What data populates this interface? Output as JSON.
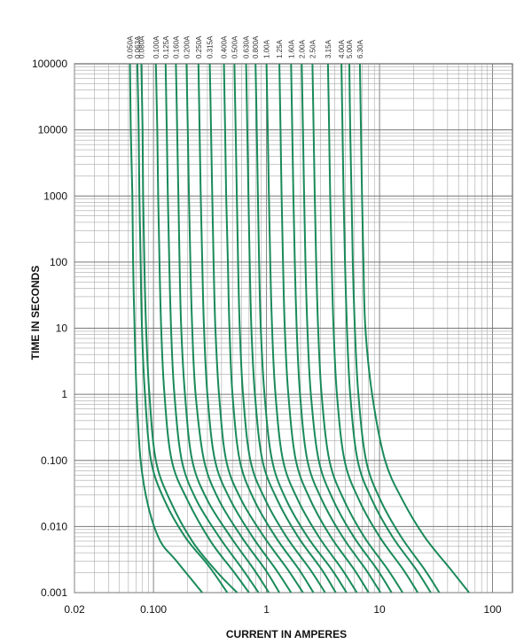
{
  "chart_data": {
    "type": "line",
    "title": "",
    "xlabel": "CURRENT IN AMPERES",
    "ylabel": "TIME IN SECONDS",
    "x_scale": "log",
    "y_scale": "log",
    "xlim": [
      0.02,
      150
    ],
    "ylim": [
      0.001,
      100000
    ],
    "grid": true,
    "line_color": "#1a8a5a",
    "x_ticks": [
      {
        "value": 0.02,
        "label": "0.02"
      },
      {
        "value": 0.1,
        "label": "0.100"
      },
      {
        "value": 1,
        "label": "1"
      },
      {
        "value": 10,
        "label": "10"
      },
      {
        "value": 100,
        "label": "100"
      }
    ],
    "y_ticks": [
      {
        "value": 100000,
        "label": "100000"
      },
      {
        "value": 10000,
        "label": "10000"
      },
      {
        "value": 1000,
        "label": "1000"
      },
      {
        "value": 100,
        "label": "100"
      },
      {
        "value": 10,
        "label": "10"
      },
      {
        "value": 1,
        "label": "1"
      },
      {
        "value": 0.1,
        "label": "0.100"
      },
      {
        "value": 0.01,
        "label": "0.010"
      },
      {
        "value": 0.001,
        "label": "0.001"
      }
    ],
    "series": [
      {
        "name": "0.050A",
        "points": [
          [
            0.062,
            100000
          ],
          [
            0.063,
            10000
          ],
          [
            0.065,
            1000
          ],
          [
            0.066,
            100
          ],
          [
            0.068,
            10
          ],
          [
            0.071,
            1
          ],
          [
            0.077,
            0.1
          ],
          [
            0.09,
            0.02
          ],
          [
            0.115,
            0.006
          ],
          [
            0.16,
            0.003
          ],
          [
            0.27,
            0.001
          ]
        ]
      },
      {
        "name": "0.063A",
        "points": [
          [
            0.072,
            100000
          ],
          [
            0.074,
            10000
          ],
          [
            0.075,
            1000
          ],
          [
            0.077,
            100
          ],
          [
            0.079,
            10
          ],
          [
            0.084,
            1
          ],
          [
            0.095,
            0.1
          ],
          [
            0.125,
            0.025
          ],
          [
            0.19,
            0.007
          ],
          [
            0.31,
            0.0025
          ],
          [
            0.45,
            0.001
          ]
        ]
      },
      {
        "name": "0.080A",
        "points": [
          [
            0.078,
            100000
          ],
          [
            0.08,
            10000
          ],
          [
            0.081,
            1000
          ],
          [
            0.083,
            100
          ],
          [
            0.086,
            10
          ],
          [
            0.092,
            1
          ],
          [
            0.105,
            0.1
          ],
          [
            0.14,
            0.025
          ],
          [
            0.22,
            0.006
          ],
          [
            0.37,
            0.002
          ],
          [
            0.55,
            0.001
          ]
        ]
      },
      {
        "name": "0.100A",
        "points": [
          [
            0.105,
            100000
          ],
          [
            0.108,
            10000
          ],
          [
            0.11,
            1000
          ],
          [
            0.113,
            100
          ],
          [
            0.117,
            10
          ],
          [
            0.125,
            1
          ],
          [
            0.145,
            0.1
          ],
          [
            0.2,
            0.025
          ],
          [
            0.32,
            0.006
          ],
          [
            0.52,
            0.002
          ],
          [
            0.7,
            0.001
          ]
        ]
      },
      {
        "name": "0.125A",
        "points": [
          [
            0.128,
            100000
          ],
          [
            0.131,
            10000
          ],
          [
            0.134,
            1000
          ],
          [
            0.138,
            100
          ],
          [
            0.143,
            10
          ],
          [
            0.153,
            1
          ],
          [
            0.178,
            0.1
          ],
          [
            0.24,
            0.025
          ],
          [
            0.38,
            0.007
          ],
          [
            0.62,
            0.0022
          ],
          [
            0.85,
            0.001
          ]
        ]
      },
      {
        "name": "0.160A",
        "points": [
          [
            0.158,
            100000
          ],
          [
            0.162,
            10000
          ],
          [
            0.166,
            1000
          ],
          [
            0.17,
            100
          ],
          [
            0.176,
            10
          ],
          [
            0.19,
            1
          ],
          [
            0.22,
            0.1
          ],
          [
            0.3,
            0.025
          ],
          [
            0.48,
            0.007
          ],
          [
            0.78,
            0.0022
          ],
          [
            1.05,
            0.001
          ]
        ]
      },
      {
        "name": "0.200A",
        "points": [
          [
            0.196,
            100000
          ],
          [
            0.201,
            10000
          ],
          [
            0.206,
            1000
          ],
          [
            0.212,
            100
          ],
          [
            0.22,
            10
          ],
          [
            0.236,
            1
          ],
          [
            0.28,
            0.1
          ],
          [
            0.38,
            0.025
          ],
          [
            0.6,
            0.007
          ],
          [
            0.98,
            0.0022
          ],
          [
            1.3,
            0.001
          ]
        ]
      },
      {
        "name": "0.250A",
        "points": [
          [
            0.25,
            100000
          ],
          [
            0.256,
            10000
          ],
          [
            0.262,
            1000
          ],
          [
            0.27,
            100
          ],
          [
            0.28,
            10
          ],
          [
            0.3,
            1
          ],
          [
            0.35,
            0.1
          ],
          [
            0.48,
            0.025
          ],
          [
            0.75,
            0.007
          ],
          [
            1.22,
            0.0022
          ],
          [
            1.65,
            0.001
          ]
        ]
      },
      {
        "name": "0.315A",
        "points": [
          [
            0.315,
            100000
          ],
          [
            0.323,
            10000
          ],
          [
            0.331,
            1000
          ],
          [
            0.34,
            100
          ],
          [
            0.353,
            10
          ],
          [
            0.38,
            1
          ],
          [
            0.44,
            0.1
          ],
          [
            0.6,
            0.025
          ],
          [
            0.95,
            0.007
          ],
          [
            1.55,
            0.0022
          ],
          [
            2.1,
            0.001
          ]
        ]
      },
      {
        "name": "0.400A",
        "points": [
          [
            0.42,
            100000
          ],
          [
            0.43,
            10000
          ],
          [
            0.44,
            1000
          ],
          [
            0.455,
            100
          ],
          [
            0.47,
            10
          ],
          [
            0.5,
            1
          ],
          [
            0.58,
            0.1
          ],
          [
            0.78,
            0.025
          ],
          [
            1.2,
            0.007
          ],
          [
            1.95,
            0.0022
          ],
          [
            2.6,
            0.001
          ]
        ]
      },
      {
        "name": "0.500A",
        "points": [
          [
            0.52,
            100000
          ],
          [
            0.533,
            10000
          ],
          [
            0.546,
            1000
          ],
          [
            0.56,
            100
          ],
          [
            0.58,
            10
          ],
          [
            0.62,
            1
          ],
          [
            0.72,
            0.1
          ],
          [
            0.98,
            0.025
          ],
          [
            1.5,
            0.007
          ],
          [
            2.45,
            0.0022
          ],
          [
            3.3,
            0.001
          ]
        ]
      },
      {
        "name": "0.630A",
        "points": [
          [
            0.66,
            100000
          ],
          [
            0.676,
            10000
          ],
          [
            0.692,
            1000
          ],
          [
            0.71,
            100
          ],
          [
            0.735,
            10
          ],
          [
            0.79,
            1
          ],
          [
            0.92,
            0.1
          ],
          [
            1.25,
            0.025
          ],
          [
            1.9,
            0.007
          ],
          [
            3.1,
            0.0022
          ],
          [
            4.1,
            0.001
          ]
        ]
      },
      {
        "name": "0.800A",
        "points": [
          [
            0.8,
            100000
          ],
          [
            0.82,
            10000
          ],
          [
            0.84,
            1000
          ],
          [
            0.86,
            100
          ],
          [
            0.89,
            10
          ],
          [
            0.96,
            1
          ],
          [
            1.12,
            0.1
          ],
          [
            1.5,
            0.025
          ],
          [
            2.3,
            0.007
          ],
          [
            3.8,
            0.0022
          ],
          [
            5.1,
            0.001
          ]
        ]
      },
      {
        "name": "1.00A",
        "points": [
          [
            1.0,
            100000
          ],
          [
            1.025,
            10000
          ],
          [
            1.05,
            1000
          ],
          [
            1.08,
            100
          ],
          [
            1.12,
            10
          ],
          [
            1.2,
            1
          ],
          [
            1.4,
            0.1
          ],
          [
            1.9,
            0.025
          ],
          [
            2.9,
            0.007
          ],
          [
            4.7,
            0.0022
          ],
          [
            6.3,
            0.001
          ]
        ]
      },
      {
        "name": "1.25A",
        "points": [
          [
            1.3,
            100000
          ],
          [
            1.33,
            10000
          ],
          [
            1.36,
            1000
          ],
          [
            1.4,
            100
          ],
          [
            1.45,
            10
          ],
          [
            1.56,
            1
          ],
          [
            1.82,
            0.1
          ],
          [
            2.45,
            0.025
          ],
          [
            3.7,
            0.007
          ],
          [
            6.0,
            0.0022
          ],
          [
            8.0,
            0.001
          ]
        ]
      },
      {
        "name": "1.60A",
        "points": [
          [
            1.65,
            100000
          ],
          [
            1.69,
            10000
          ],
          [
            1.73,
            1000
          ],
          [
            1.78,
            100
          ],
          [
            1.85,
            10
          ],
          [
            1.98,
            1
          ],
          [
            2.3,
            0.1
          ],
          [
            3.1,
            0.025
          ],
          [
            4.7,
            0.007
          ],
          [
            7.6,
            0.0022
          ],
          [
            10.2,
            0.001
          ]
        ]
      },
      {
        "name": "2.00A",
        "points": [
          [
            2.05,
            100000
          ],
          [
            2.1,
            10000
          ],
          [
            2.15,
            1000
          ],
          [
            2.21,
            100
          ],
          [
            2.3,
            10
          ],
          [
            2.47,
            1
          ],
          [
            2.9,
            0.1
          ],
          [
            3.9,
            0.025
          ],
          [
            5.9,
            0.007
          ],
          [
            9.6,
            0.0022
          ],
          [
            12.8,
            0.001
          ]
        ]
      },
      {
        "name": "2.50A",
        "points": [
          [
            2.55,
            100000
          ],
          [
            2.61,
            10000
          ],
          [
            2.67,
            1000
          ],
          [
            2.75,
            100
          ],
          [
            2.86,
            10
          ],
          [
            3.07,
            1
          ],
          [
            3.6,
            0.1
          ],
          [
            4.85,
            0.025
          ],
          [
            7.3,
            0.007
          ],
          [
            11.9,
            0.0022
          ],
          [
            16,
            0.001
          ]
        ]
      },
      {
        "name": "3.15A",
        "points": [
          [
            3.5,
            100000
          ],
          [
            3.58,
            10000
          ],
          [
            3.66,
            1000
          ],
          [
            3.77,
            100
          ],
          [
            3.92,
            10
          ],
          [
            4.2,
            1
          ],
          [
            4.9,
            0.1
          ],
          [
            6.6,
            0.025
          ],
          [
            10,
            0.007
          ],
          [
            16.3,
            0.0022
          ],
          [
            21.8,
            0.001
          ]
        ]
      },
      {
        "name": "4.00A",
        "points": [
          [
            4.6,
            100000
          ],
          [
            4.7,
            10000
          ],
          [
            4.81,
            1000
          ],
          [
            4.95,
            100
          ],
          [
            5.15,
            10
          ],
          [
            5.5,
            1
          ],
          [
            6.4,
            0.1
          ],
          [
            8.6,
            0.025
          ],
          [
            13,
            0.007
          ],
          [
            21.2,
            0.0022
          ],
          [
            28.4,
            0.001
          ]
        ]
      },
      {
        "name": "5.00A",
        "points": [
          [
            5.4,
            100000
          ],
          [
            5.5,
            10000
          ],
          [
            5.65,
            1000
          ],
          [
            5.8,
            100
          ],
          [
            6.05,
            10
          ],
          [
            6.5,
            1
          ],
          [
            7.6,
            0.1
          ],
          [
            10.2,
            0.025
          ],
          [
            15.5,
            0.007
          ],
          [
            25.2,
            0.0022
          ],
          [
            33.8,
            0.001
          ]
        ]
      },
      {
        "name": "6.30A",
        "points": [
          [
            6.7,
            100000
          ],
          [
            6.85,
            10000
          ],
          [
            7.0,
            1000
          ],
          [
            7.2,
            100
          ],
          [
            7.5,
            10
          ],
          [
            8.6,
            1
          ],
          [
            11.2,
            0.1
          ],
          [
            16,
            0.025
          ],
          [
            25,
            0.007
          ],
          [
            43,
            0.0022
          ],
          [
            62,
            0.001
          ]
        ]
      }
    ]
  }
}
